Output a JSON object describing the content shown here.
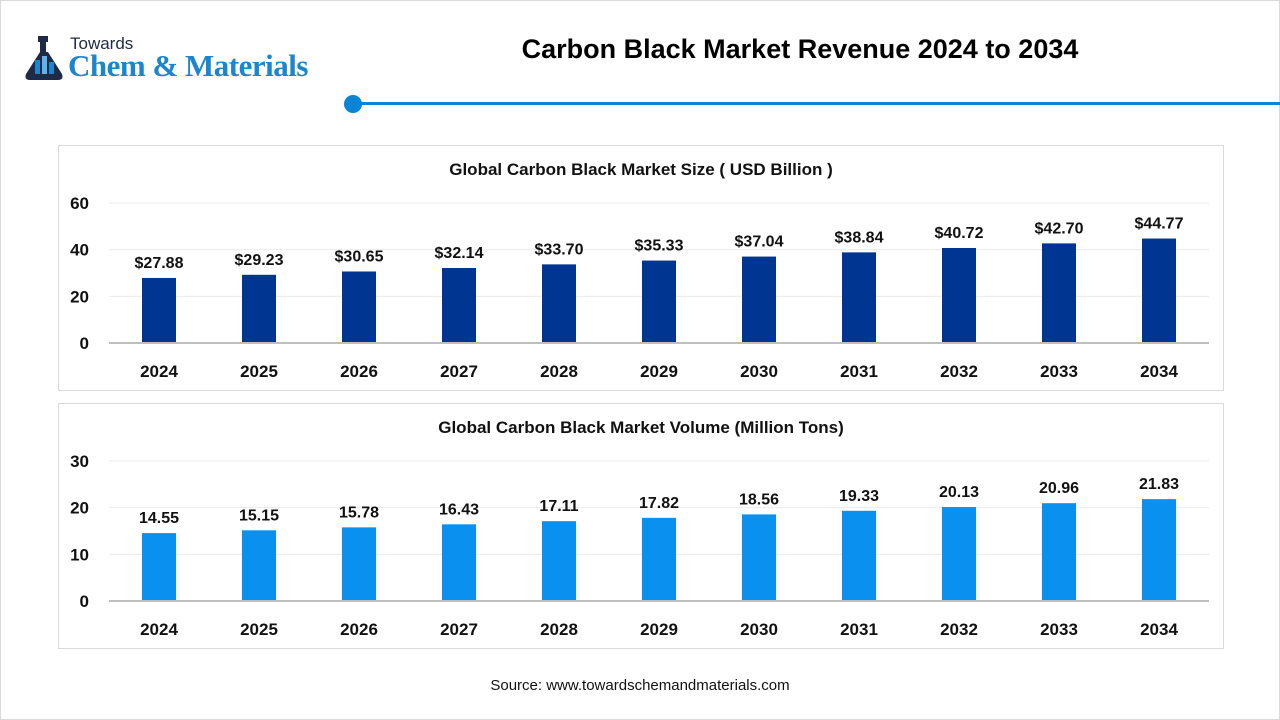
{
  "logo": {
    "towards": "Towards",
    "main": "Chem & Materials"
  },
  "title": "Carbon Black Market Revenue 2024 to 2034",
  "source": "Source: www.towardschemandmaterials.com",
  "colors": {
    "accent": "#0a84d6",
    "size_bar": "#003591",
    "volume_bar": "#0a90ee"
  },
  "chart_data": [
    {
      "type": "bar",
      "title": "Global Carbon Black Market Size ( USD Billion )",
      "categories": [
        "2024",
        "2025",
        "2026",
        "2027",
        "2028",
        "2029",
        "2030",
        "2031",
        "2032",
        "2033",
        "2034"
      ],
      "values": [
        27.88,
        29.23,
        30.65,
        32.14,
        33.7,
        35.33,
        37.04,
        38.84,
        40.72,
        42.7,
        44.77
      ],
      "data_labels": [
        "$27.88",
        "$29.23",
        "$30.65",
        "$32.14",
        "$33.70",
        "$35.33",
        "$37.04",
        "$38.84",
        "$40.72",
        "$42.70",
        "$44.77"
      ],
      "yticks": [
        "0",
        "20",
        "40",
        "60"
      ],
      "ylim": [
        0,
        60
      ],
      "grid": true,
      "color": "#003591"
    },
    {
      "type": "bar",
      "title": "Global Carbon Black Market Volume (Million Tons)",
      "categories": [
        "2024",
        "2025",
        "2026",
        "2027",
        "2028",
        "2029",
        "2030",
        "2031",
        "2032",
        "2033",
        "2034"
      ],
      "values": [
        14.55,
        15.15,
        15.78,
        16.43,
        17.11,
        17.82,
        18.56,
        19.33,
        20.13,
        20.96,
        21.83
      ],
      "data_labels": [
        "14.55",
        "15.15",
        "15.78",
        "16.43",
        "17.11",
        "17.82",
        "18.56",
        "19.33",
        "20.13",
        "20.96",
        "21.83"
      ],
      "yticks": [
        "0",
        "10",
        "20",
        "30"
      ],
      "ylim": [
        0,
        30
      ],
      "grid": true,
      "color": "#0a90ee"
    }
  ]
}
